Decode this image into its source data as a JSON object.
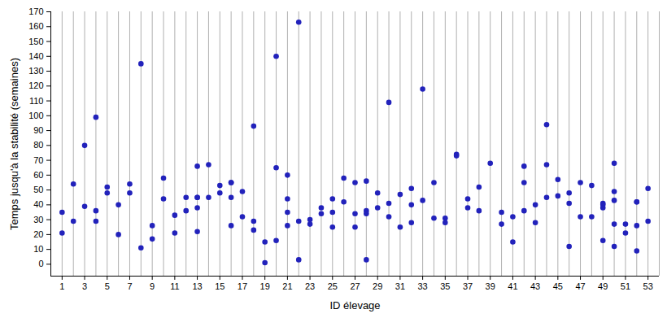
{
  "chart_data": {
    "type": "scatter",
    "x_label": "ID élevage",
    "y_label": "Temps jusqu'à la stabilité (semaines)",
    "color": "#2222bb",
    "marker": "circle",
    "grid": "x",
    "xlim": [
      0,
      54
    ],
    "ylim": [
      -8,
      170
    ],
    "xticks": [
      1,
      3,
      5,
      7,
      9,
      11,
      13,
      15,
      17,
      19,
      21,
      23,
      25,
      27,
      29,
      31,
      33,
      35,
      37,
      39,
      41,
      43,
      45,
      47,
      49,
      51,
      53
    ],
    "yticks": [
      0,
      10,
      20,
      30,
      40,
      50,
      60,
      70,
      80,
      90,
      100,
      110,
      120,
      130,
      140,
      150,
      160,
      170
    ],
    "x": [
      1,
      1,
      2,
      2,
      3,
      3,
      4,
      4,
      4,
      5,
      5,
      6,
      6,
      7,
      7,
      8,
      8,
      9,
      9,
      10,
      10,
      11,
      11,
      12,
      12,
      13,
      13,
      13,
      13,
      13,
      14,
      14,
      15,
      15,
      16,
      16,
      16,
      16,
      17,
      17,
      18,
      18,
      18,
      19,
      19,
      20,
      20,
      20,
      21,
      21,
      21,
      21,
      22,
      22,
      22,
      23,
      23,
      24,
      24,
      25,
      25,
      25,
      26,
      26,
      27,
      27,
      27,
      28,
      28,
      28,
      28,
      29,
      29,
      30,
      30,
      30,
      31,
      31,
      32,
      32,
      32,
      33,
      33,
      34,
      34,
      35,
      35,
      36,
      36,
      37,
      37,
      38,
      38,
      39,
      40,
      40,
      41,
      41,
      42,
      42,
      42,
      43,
      43,
      44,
      44,
      44,
      45,
      45,
      46,
      46,
      46,
      47,
      47,
      48,
      48,
      49,
      49,
      49,
      49,
      50,
      50,
      50,
      50,
      50,
      51,
      51,
      52,
      52,
      52,
      52,
      53,
      53
    ],
    "values": [
      35,
      21,
      54,
      29,
      80,
      39,
      99,
      36,
      29,
      52,
      48,
      40,
      20,
      54,
      48,
      135,
      11,
      26,
      17,
      58,
      44,
      33,
      21,
      45,
      36,
      66,
      45,
      45,
      38,
      22,
      67,
      45,
      53,
      48,
      55,
      55,
      45,
      26,
      49,
      32,
      93,
      29,
      23,
      15,
      1,
      140,
      65,
      16,
      60,
      44,
      35,
      26,
      163,
      29,
      3,
      30,
      27,
      38,
      34,
      44,
      35,
      25,
      58,
      42,
      55,
      34,
      25,
      56,
      36,
      34,
      3,
      48,
      38,
      109,
      41,
      32,
      47,
      25,
      51,
      40,
      28,
      118,
      43,
      55,
      31,
      31,
      28,
      74,
      73,
      44,
      38,
      52,
      36,
      68,
      35,
      27,
      32,
      15,
      66,
      55,
      36,
      40,
      28,
      94,
      67,
      45,
      57,
      46,
      48,
      41,
      12,
      55,
      32,
      53,
      32,
      41,
      40,
      38,
      16,
      68,
      49,
      43,
      27,
      12,
      27,
      21,
      42,
      42,
      26,
      9,
      51,
      29
    ]
  }
}
